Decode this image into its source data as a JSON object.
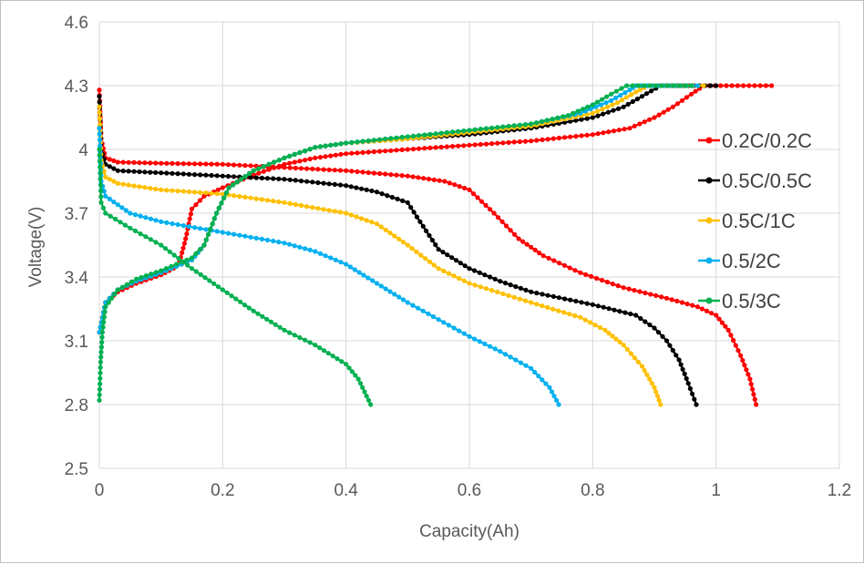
{
  "chart_data": {
    "type": "scatter",
    "title": "",
    "xlabel": "Capacity(Ah)",
    "ylabel": "Voltage(V)",
    "xlim": [
      0,
      1.2
    ],
    "ylim": [
      2.5,
      4.6
    ],
    "x_ticks": [
      "0",
      "0.2",
      "0.4",
      "0.6",
      "0.8",
      "1",
      "1.2"
    ],
    "y_ticks": [
      "2.5",
      "2.8",
      "3.1",
      "3.4",
      "3.7",
      "4",
      "4.3",
      "4.6"
    ],
    "grid": true,
    "legend_position": "right",
    "series": [
      {
        "name": "0.2C/0.2C",
        "color": "#ff0000",
        "discharge": [
          [
            0,
            4.28
          ],
          [
            0.003,
            4.05
          ],
          [
            0.01,
            3.96
          ],
          [
            0.03,
            3.94
          ],
          [
            0.1,
            3.935
          ],
          [
            0.2,
            3.93
          ],
          [
            0.3,
            3.915
          ],
          [
            0.4,
            3.9
          ],
          [
            0.5,
            3.875
          ],
          [
            0.56,
            3.85
          ],
          [
            0.6,
            3.81
          ],
          [
            0.64,
            3.7
          ],
          [
            0.68,
            3.58
          ],
          [
            0.72,
            3.5
          ],
          [
            0.78,
            3.42
          ],
          [
            0.85,
            3.35
          ],
          [
            0.92,
            3.3
          ],
          [
            0.97,
            3.26
          ],
          [
            1.0,
            3.22
          ],
          [
            1.02,
            3.15
          ],
          [
            1.04,
            3.03
          ],
          [
            1.055,
            2.92
          ],
          [
            1.065,
            2.8
          ]
        ],
        "charge": [
          [
            0,
            3.14
          ],
          [
            0.01,
            3.28
          ],
          [
            0.03,
            3.33
          ],
          [
            0.06,
            3.37
          ],
          [
            0.1,
            3.41
          ],
          [
            0.12,
            3.44
          ],
          [
            0.13,
            3.47
          ],
          [
            0.14,
            3.58
          ],
          [
            0.15,
            3.72
          ],
          [
            0.17,
            3.78
          ],
          [
            0.2,
            3.82
          ],
          [
            0.25,
            3.88
          ],
          [
            0.3,
            3.93
          ],
          [
            0.35,
            3.96
          ],
          [
            0.4,
            3.98
          ],
          [
            0.5,
            4.0
          ],
          [
            0.6,
            4.02
          ],
          [
            0.7,
            4.04
          ],
          [
            0.8,
            4.07
          ],
          [
            0.86,
            4.1
          ],
          [
            0.9,
            4.15
          ],
          [
            0.93,
            4.2
          ],
          [
            0.96,
            4.26
          ],
          [
            0.98,
            4.3
          ],
          [
            1.09,
            4.3
          ]
        ]
      },
      {
        "name": "0.5C/0.5C",
        "color": "#000000",
        "discharge": [
          [
            0,
            4.25
          ],
          [
            0.003,
            4.0
          ],
          [
            0.01,
            3.93
          ],
          [
            0.03,
            3.9
          ],
          [
            0.1,
            3.89
          ],
          [
            0.2,
            3.875
          ],
          [
            0.3,
            3.86
          ],
          [
            0.4,
            3.83
          ],
          [
            0.45,
            3.8
          ],
          [
            0.5,
            3.75
          ],
          [
            0.52,
            3.66
          ],
          [
            0.55,
            3.53
          ],
          [
            0.6,
            3.44
          ],
          [
            0.65,
            3.38
          ],
          [
            0.7,
            3.33
          ],
          [
            0.8,
            3.27
          ],
          [
            0.87,
            3.22
          ],
          [
            0.9,
            3.16
          ],
          [
            0.92,
            3.1
          ],
          [
            0.94,
            3.01
          ],
          [
            0.955,
            2.9
          ],
          [
            0.968,
            2.8
          ]
        ],
        "charge": [
          [
            0,
            3.14
          ],
          [
            0.01,
            3.28
          ],
          [
            0.03,
            3.34
          ],
          [
            0.06,
            3.38
          ],
          [
            0.1,
            3.42
          ],
          [
            0.15,
            3.48
          ],
          [
            0.17,
            3.55
          ],
          [
            0.19,
            3.7
          ],
          [
            0.21,
            3.82
          ],
          [
            0.25,
            3.9
          ],
          [
            0.3,
            3.96
          ],
          [
            0.35,
            4.01
          ],
          [
            0.4,
            4.03
          ],
          [
            0.5,
            4.05
          ],
          [
            0.6,
            4.07
          ],
          [
            0.7,
            4.1
          ],
          [
            0.8,
            4.15
          ],
          [
            0.85,
            4.2
          ],
          [
            0.88,
            4.25
          ],
          [
            0.91,
            4.3
          ],
          [
            1.0,
            4.3
          ]
        ]
      },
      {
        "name": "0.5C/1C",
        "color": "#ffc000",
        "discharge": [
          [
            0,
            4.2
          ],
          [
            0.003,
            3.95
          ],
          [
            0.01,
            3.87
          ],
          [
            0.03,
            3.84
          ],
          [
            0.1,
            3.81
          ],
          [
            0.2,
            3.79
          ],
          [
            0.3,
            3.75
          ],
          [
            0.4,
            3.7
          ],
          [
            0.45,
            3.65
          ],
          [
            0.5,
            3.55
          ],
          [
            0.55,
            3.44
          ],
          [
            0.6,
            3.37
          ],
          [
            0.7,
            3.28
          ],
          [
            0.78,
            3.21
          ],
          [
            0.82,
            3.15
          ],
          [
            0.85,
            3.08
          ],
          [
            0.88,
            2.98
          ],
          [
            0.9,
            2.88
          ],
          [
            0.91,
            2.8
          ]
        ],
        "charge": [
          [
            0,
            3.14
          ],
          [
            0.01,
            3.28
          ],
          [
            0.03,
            3.34
          ],
          [
            0.06,
            3.38
          ],
          [
            0.1,
            3.42
          ],
          [
            0.15,
            3.48
          ],
          [
            0.17,
            3.55
          ],
          [
            0.19,
            3.7
          ],
          [
            0.21,
            3.82
          ],
          [
            0.25,
            3.9
          ],
          [
            0.3,
            3.96
          ],
          [
            0.35,
            4.01
          ],
          [
            0.4,
            4.03
          ],
          [
            0.5,
            4.05
          ],
          [
            0.6,
            4.08
          ],
          [
            0.7,
            4.11
          ],
          [
            0.8,
            4.17
          ],
          [
            0.84,
            4.22
          ],
          [
            0.87,
            4.27
          ],
          [
            0.89,
            4.3
          ],
          [
            0.98,
            4.3
          ]
        ]
      },
      {
        "name": "0.5/2C",
        "color": "#00b0f0",
        "discharge": [
          [
            0,
            4.1
          ],
          [
            0.003,
            3.85
          ],
          [
            0.01,
            3.78
          ],
          [
            0.05,
            3.7
          ],
          [
            0.1,
            3.66
          ],
          [
            0.2,
            3.61
          ],
          [
            0.3,
            3.56
          ],
          [
            0.35,
            3.52
          ],
          [
            0.4,
            3.46
          ],
          [
            0.45,
            3.37
          ],
          [
            0.5,
            3.28
          ],
          [
            0.55,
            3.2
          ],
          [
            0.6,
            3.12
          ],
          [
            0.65,
            3.05
          ],
          [
            0.7,
            2.97
          ],
          [
            0.73,
            2.88
          ],
          [
            0.745,
            2.8
          ]
        ],
        "charge": [
          [
            0,
            3.14
          ],
          [
            0.01,
            3.28
          ],
          [
            0.03,
            3.34
          ],
          [
            0.06,
            3.38
          ],
          [
            0.1,
            3.42
          ],
          [
            0.15,
            3.48
          ],
          [
            0.17,
            3.55
          ],
          [
            0.19,
            3.7
          ],
          [
            0.21,
            3.82
          ],
          [
            0.25,
            3.9
          ],
          [
            0.3,
            3.96
          ],
          [
            0.35,
            4.01
          ],
          [
            0.4,
            4.03
          ],
          [
            0.5,
            4.06
          ],
          [
            0.6,
            4.09
          ],
          [
            0.7,
            4.12
          ],
          [
            0.78,
            4.17
          ],
          [
            0.83,
            4.23
          ],
          [
            0.86,
            4.28
          ],
          [
            0.87,
            4.3
          ],
          [
            0.97,
            4.3
          ]
        ]
      },
      {
        "name": "0.5/3C",
        "color": "#00b050",
        "discharge": [
          [
            0,
            4.0
          ],
          [
            0.003,
            3.75
          ],
          [
            0.01,
            3.7
          ],
          [
            0.05,
            3.63
          ],
          [
            0.1,
            3.55
          ],
          [
            0.15,
            3.44
          ],
          [
            0.2,
            3.34
          ],
          [
            0.25,
            3.24
          ],
          [
            0.3,
            3.15
          ],
          [
            0.35,
            3.08
          ],
          [
            0.4,
            2.99
          ],
          [
            0.42,
            2.92
          ],
          [
            0.43,
            2.86
          ],
          [
            0.44,
            2.8
          ]
        ],
        "charge": [
          [
            0,
            2.82
          ],
          [
            0.002,
            3.0
          ],
          [
            0.005,
            3.14
          ],
          [
            0.01,
            3.26
          ],
          [
            0.03,
            3.34
          ],
          [
            0.06,
            3.39
          ],
          [
            0.1,
            3.43
          ],
          [
            0.15,
            3.49
          ],
          [
            0.17,
            3.55
          ],
          [
            0.19,
            3.7
          ],
          [
            0.21,
            3.82
          ],
          [
            0.25,
            3.9
          ],
          [
            0.3,
            3.96
          ],
          [
            0.35,
            4.01
          ],
          [
            0.4,
            4.03
          ],
          [
            0.5,
            4.06
          ],
          [
            0.6,
            4.09
          ],
          [
            0.7,
            4.12
          ],
          [
            0.76,
            4.16
          ],
          [
            0.8,
            4.21
          ],
          [
            0.83,
            4.26
          ],
          [
            0.855,
            4.3
          ],
          [
            0.96,
            4.3
          ]
        ]
      }
    ]
  }
}
